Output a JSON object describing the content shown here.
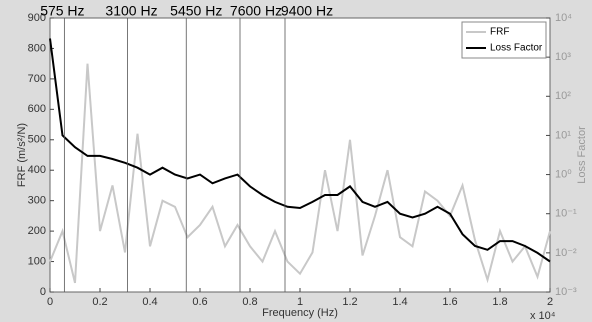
{
  "chart_data": {
    "type": "line",
    "xlabel": "Frequency (Hz)",
    "ylabel": "FRF (m/s²/N)",
    "y2label": "Loss Factor",
    "x_multiplier": "x 10⁴",
    "x": [
      0,
      500,
      1000,
      1500,
      2000,
      2500,
      3000,
      3500,
      4000,
      4500,
      5000,
      5500,
      6000,
      6500,
      7000,
      7500,
      8000,
      8500,
      9000,
      9500,
      10000,
      10500,
      11000,
      11500,
      12000,
      12500,
      13000,
      13500,
      14000,
      14500,
      15000,
      15500,
      16000,
      16500,
      17000,
      17500,
      18000,
      18500,
      19000,
      19500,
      20000
    ],
    "series": [
      {
        "name": "FRF",
        "color": "#c8c8c8",
        "axis": "y",
        "values": [
          100,
          200,
          30,
          750,
          200,
          350,
          130,
          520,
          150,
          300,
          280,
          180,
          220,
          280,
          150,
          220,
          150,
          100,
          200,
          100,
          60,
          130,
          400,
          200,
          500,
          120,
          250,
          400,
          180,
          150,
          330,
          300,
          250,
          350,
          170,
          40,
          200,
          100,
          150,
          50,
          200
        ]
      },
      {
        "name": "Loss Factor",
        "color": "#000000",
        "axis": "y2",
        "values": [
          3000,
          10,
          5,
          3,
          3,
          2.5,
          2,
          1.5,
          1,
          1.5,
          1,
          0.8,
          1,
          0.6,
          0.8,
          1,
          0.5,
          0.3,
          0.2,
          0.15,
          0.14,
          0.2,
          0.3,
          0.3,
          0.5,
          0.2,
          0.15,
          0.2,
          0.1,
          0.08,
          0.1,
          0.15,
          0.1,
          0.03,
          0.015,
          0.012,
          0.02,
          0.02,
          0.015,
          0.01,
          0.006
        ]
      }
    ],
    "xlim": [
      0,
      20000
    ],
    "xticks": [
      {
        "value": 0,
        "label": "0"
      },
      {
        "value": 2000,
        "label": "0.2"
      },
      {
        "value": 4000,
        "label": "0.4"
      },
      {
        "value": 6000,
        "label": "0.6"
      },
      {
        "value": 8000,
        "label": "0.8"
      },
      {
        "value": 10000,
        "label": "1"
      },
      {
        "value": 12000,
        "label": "1.2"
      },
      {
        "value": 14000,
        "label": "1.4"
      },
      {
        "value": 16000,
        "label": "1.6"
      },
      {
        "value": 18000,
        "label": "1.8"
      },
      {
        "value": 20000,
        "label": "2"
      }
    ],
    "ylim": [
      0,
      900
    ],
    "yticks": [
      0,
      100,
      200,
      300,
      400,
      500,
      600,
      700,
      800,
      900
    ],
    "y2lim": [
      0.001,
      10000
    ],
    "y2scale": "log",
    "y2ticks": [
      {
        "value": 0.001,
        "label": "10⁻³"
      },
      {
        "value": 0.01,
        "label": "10⁻²"
      },
      {
        "value": 0.1,
        "label": "10⁻¹"
      },
      {
        "value": 1,
        "label": "10⁰"
      },
      {
        "value": 10,
        "label": "10¹"
      },
      {
        "value": 100,
        "label": "10²"
      },
      {
        "value": 1000,
        "label": "10³"
      },
      {
        "value": 10000,
        "label": "10⁴"
      }
    ],
    "markers": [
      {
        "value": 575,
        "label": "575 Hz"
      },
      {
        "value": 3100,
        "label": "3100 Hz"
      },
      {
        "value": 5450,
        "label": "5450 Hz"
      },
      {
        "value": 7600,
        "label": "7600 Hz"
      },
      {
        "value": 9400,
        "label": "9400 Hz"
      }
    ],
    "legend": "top-right"
  }
}
